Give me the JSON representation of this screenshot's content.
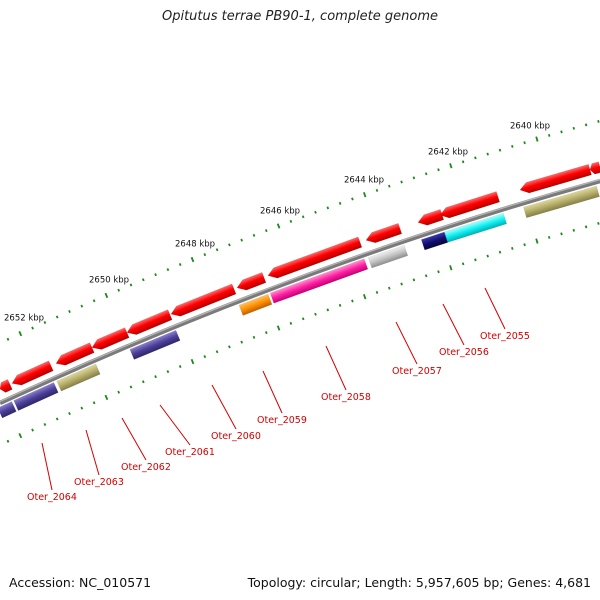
{
  "title": "Opitutus terrae PB90-1, complete genome",
  "footer": {
    "accession": "Accession: NC_010571",
    "summary": "Topology: circular; Length: 5,957,605 bp; Genes: 4,681"
  },
  "ruler": [
    {
      "label": "2640 kbp"
    },
    {
      "label": "2642 kbp"
    },
    {
      "label": "2644 kbp"
    },
    {
      "label": "2646 kbp"
    },
    {
      "label": "2648 kbp"
    },
    {
      "label": "2650 kbp"
    },
    {
      "label": "2652 kbp"
    }
  ],
  "gene_labels": [
    {
      "name": "Oter_2055"
    },
    {
      "name": "Oter_2056"
    },
    {
      "name": "Oter_2057"
    },
    {
      "name": "Oter_2058"
    },
    {
      "name": "Oter_2059"
    },
    {
      "name": "Oter_2060"
    },
    {
      "name": "Oter_2061"
    },
    {
      "name": "Oter_2062"
    },
    {
      "name": "Oter_2063"
    },
    {
      "name": "Oter_2064"
    }
  ],
  "colors": {
    "backbone": "#7a7a7a",
    "cds": "#ff0000",
    "tick": "#1a8a1a",
    "label": "#d20000"
  }
}
